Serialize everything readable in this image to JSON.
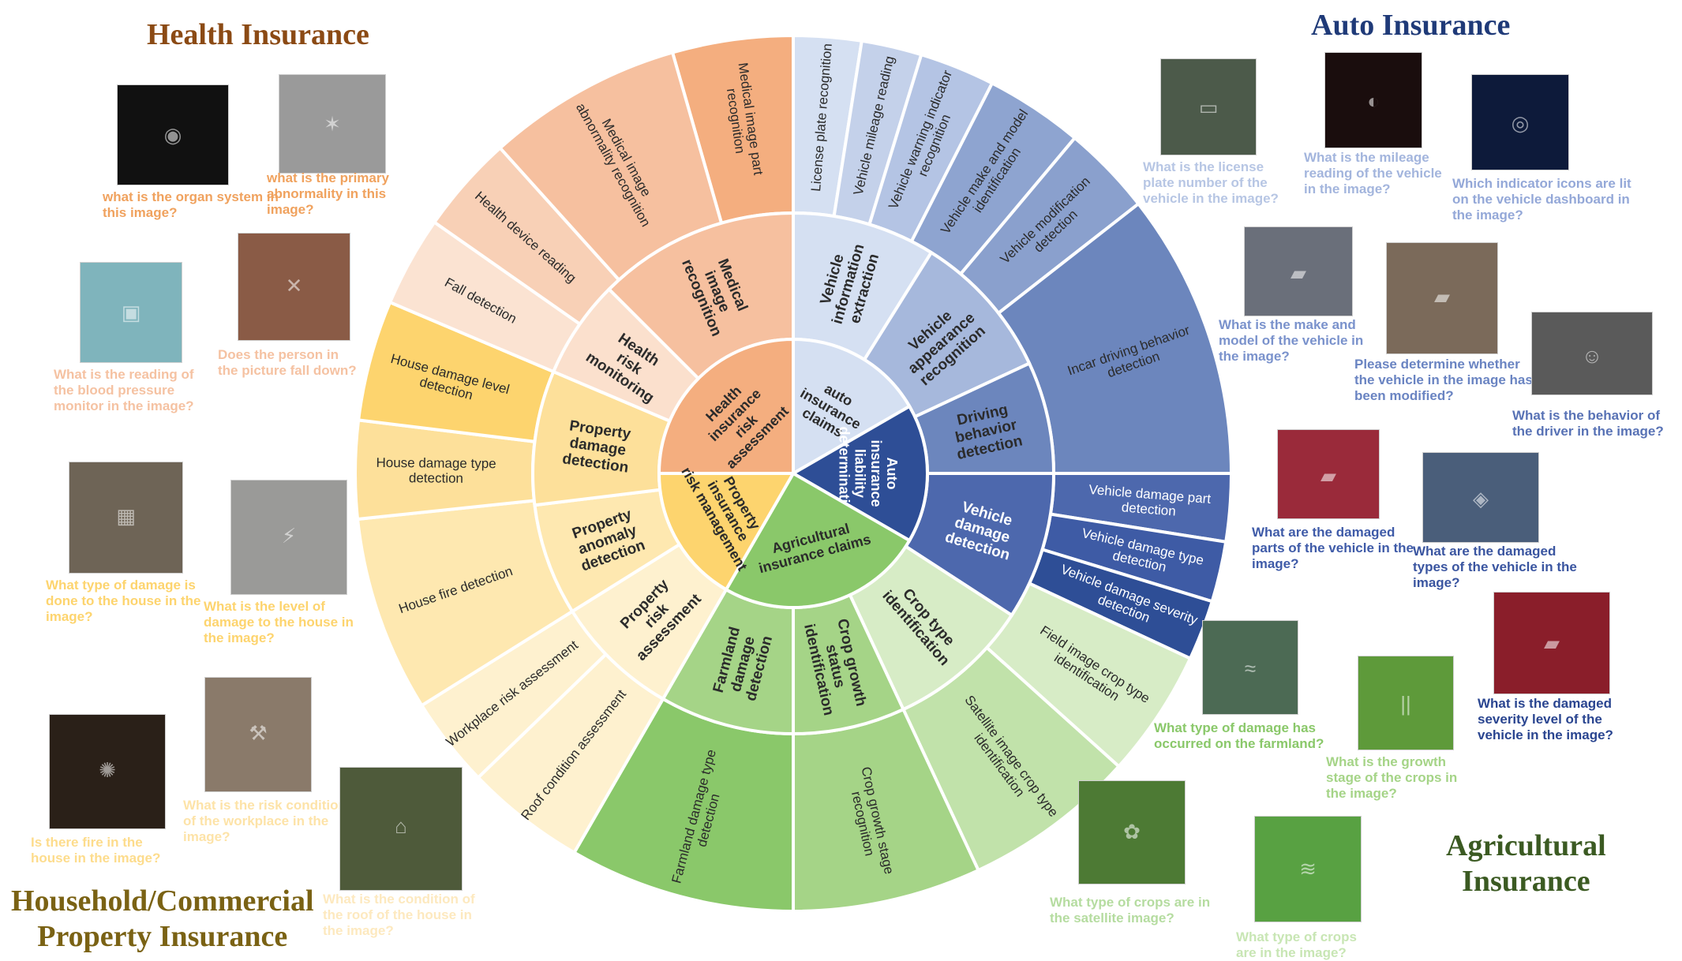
{
  "palette": {
    "health": [
      "#f4ae7f",
      "#f6c09f",
      "#f8d0b6",
      "#fbe3d2"
    ],
    "auto": [
      "#d5e0f2",
      "#a6b8dc",
      "#8aa0cd",
      "#6c86bd",
      "#4d68ad",
      "#2e4e96"
    ],
    "property": [
      "#fdd46e",
      "#fde09a",
      "#feeab6",
      "#fef1cf"
    ],
    "agri": [
      "#8ac86a",
      "#a5d487",
      "#c1e2aa",
      "#d7ecc6"
    ],
    "text_dark": "#2b2b2b",
    "text_light": "#ffffff"
  },
  "titles": {
    "health": "Health Insurance",
    "auto": "Auto Insurance",
    "property": "Household/Commercial\nProperty Insurance",
    "agri": "Agricultural\nInsurance"
  },
  "title_colors": {
    "health": "#8b4a14",
    "auto": "#1f3a78",
    "property": "#7a6214",
    "agri": "#3b5a22"
  },
  "wheel": {
    "inner": [
      {
        "label": "Health\ninsurance\nrisk\nassessment",
        "color": "#f4ae7f",
        "text": "#2b2b2b"
      },
      {
        "label": "auto\ninsurance\nclaims",
        "color": "#d5e0f2",
        "text": "#2b2b2b"
      },
      {
        "label": "Auto\ninsurance\nliability\ndetermination",
        "color": "#2e4e96",
        "text": "#ffffff"
      },
      {
        "label": "Agricultural\ninsurance claims",
        "color": "#8ac86a",
        "text": "#2b2b2b"
      },
      {
        "label": "Property\ninsurance\nrisk management",
        "color": "#fdd46e",
        "text": "#2b2b2b"
      }
    ],
    "middle": [
      {
        "label": "Medical\nimage\nrecognition",
        "color": "#f6c09f",
        "text": "#2b2b2b"
      },
      {
        "label": "Vehicle\ninformation\nextraction",
        "color": "#d5e0f2",
        "text": "#2b2b2b"
      },
      {
        "label": "Vehicle\nappearance\nrecognition",
        "color": "#a6b8dc",
        "text": "#2b2b2b"
      },
      {
        "label": "Driving\nbehavior\ndetection",
        "color": "#6c86bd",
        "text": "#2b2b2b"
      },
      {
        "label": "Vehicle\ndamage\ndetection",
        "color": "#4d68ad",
        "text": "#ffffff"
      },
      {
        "label": "Crop type\nidentification",
        "color": "#d7ecc6",
        "text": "#2b2b2b"
      },
      {
        "label": "Crop growth\nstatus\nidentification",
        "color": "#a5d487",
        "text": "#2b2b2b"
      },
      {
        "label": "Farmland\ndamage\ndetection",
        "color": "#a5d487",
        "text": "#2b2b2b"
      },
      {
        "label": "Property\nrisk\nassessment",
        "color": "#fef1cf",
        "text": "#2b2b2b"
      },
      {
        "label": "Property\nanomaly\ndetection",
        "color": "#fee8b0",
        "text": "#2b2b2b"
      },
      {
        "label": "Property\ndamage\ndetection",
        "color": "#fde09a",
        "text": "#2b2b2b"
      },
      {
        "label": "Health\nrisk\nmonitoring",
        "color": "#fbe0cd",
        "text": "#2b2b2b"
      }
    ],
    "outer": [
      {
        "label": "Medical image part\nrecognition",
        "color": "#f4ae7f",
        "text": "#2b2b2b"
      },
      {
        "label": "License plate recognition",
        "color": "#d5e0f2",
        "text": "#2b2b2b"
      },
      {
        "label": "Vehicle mileage reading",
        "color": "#c4d1ea",
        "text": "#2b2b2b"
      },
      {
        "label": "Vehicle warning indicator\nrecognition",
        "color": "#b4c4e4",
        "text": "#2b2b2b"
      },
      {
        "label": "Vehicle make and model\nidentification",
        "color": "#8ea4d0",
        "text": "#2b2b2b"
      },
      {
        "label": "Vehicle modification\ndetection",
        "color": "#8aa0cd",
        "text": "#2b2b2b"
      },
      {
        "label": "Incar driving behavior\ndetection",
        "color": "#6c86bd",
        "text": "#2b2b2b"
      },
      {
        "label": "Vehicle damage part\ndetection",
        "color": "#4d68ad",
        "text": "#ffffff"
      },
      {
        "label": "Vehicle damage type\ndetection",
        "color": "#3e5ba5",
        "text": "#ffffff"
      },
      {
        "label": "Vehicle damage severity\ndetection",
        "color": "#2e4e96",
        "text": "#ffffff"
      },
      {
        "label": "Field image crop type\nidentification",
        "color": "#d7ecc6",
        "text": "#2b2b2b"
      },
      {
        "label": "Satellite image crop type\nidentification",
        "color": "#c1e2aa",
        "text": "#2b2b2b"
      },
      {
        "label": "Crop growth stage\nrecognition",
        "color": "#a5d487",
        "text": "#2b2b2b"
      },
      {
        "label": "Farmland damage type\ndetection",
        "color": "#8ac86a",
        "text": "#2b2b2b"
      },
      {
        "label": "Roof condition assessment",
        "color": "#fef1cf",
        "text": "#2b2b2b"
      },
      {
        "label": "Workplace risk assessment",
        "color": "#fef1cf",
        "text": "#2b2b2b"
      },
      {
        "label": "House fire detection",
        "color": "#fee8b0",
        "text": "#2b2b2b"
      },
      {
        "label": "House damage type\ndetection",
        "color": "#fde09a",
        "text": "#2b2b2b"
      },
      {
        "label": "House damage level\ndetection",
        "color": "#fdd46e",
        "text": "#2b2b2b"
      },
      {
        "label": "Fall detection",
        "color": "#fbe3d2",
        "text": "#2b2b2b"
      },
      {
        "label": "Health device reading",
        "color": "#f8d0b6",
        "text": "#2b2b2b"
      },
      {
        "label": "Medical image\nabnormality recognition",
        "color": "#f6c09f",
        "text": "#2b2b2b"
      }
    ]
  },
  "examples": [
    {
      "id": "organ",
      "question": "what is the organ system in this image?",
      "color": "#f0a25e",
      "bg": "#111111",
      "icon": "ct-scan-image"
    },
    {
      "id": "abnormality",
      "question": "what is the primary abnormality in this image?",
      "color": "#f0a25e",
      "bg": "#9a9a9a",
      "icon": "x-ray-image"
    },
    {
      "id": "blood-pressure",
      "question": "What is the reading of the blood pressure monitor in the image?",
      "color": "#f5c2a2",
      "bg": "#7fb4bc",
      "icon": "blood-pressure-monitor-image"
    },
    {
      "id": "fall",
      "question": "Does the person in the picture fall down?",
      "color": "#f5c2a2",
      "bg": "#8a5b46",
      "icon": "fallen-person-image"
    },
    {
      "id": "license",
      "question": "What is the license plate number of the vehicle in the image?",
      "color": "#b7c6e4",
      "bg": "#4c5a4a",
      "icon": "car-rear-image"
    },
    {
      "id": "mileage",
      "question": "What is the mileage reading of the vehicle in the image?",
      "color": "#a3b5dd",
      "bg": "#1a0d0d",
      "icon": "dashboard-display-image"
    },
    {
      "id": "indicator",
      "question": "Which indicator icons are lit on the vehicle dashboard in the image?",
      "color": "#94a8d8",
      "bg": "#0d1a3a",
      "icon": "instrument-cluster-image"
    },
    {
      "id": "make-model",
      "question": "What is the make and model of the vehicle in the image?",
      "color": "#7a92cc",
      "bg": "#6a6f7a",
      "icon": "sedan-image"
    },
    {
      "id": "modified",
      "question": "Please determine whether the vehicle in the image has been modified?",
      "color": "#6a84c2",
      "bg": "#7b6a5a",
      "icon": "race-car-image"
    },
    {
      "id": "driver",
      "question": "What is the behavior of the driver in the image?",
      "color": "#5872b5",
      "bg": "#5a5a5a",
      "icon": "driver-image"
    },
    {
      "id": "damaged-parts",
      "question": "What are the damaged parts of the vehicle in the image?",
      "color": "#3f5ba8",
      "bg": "#9a2a3a",
      "icon": "damaged-red-car-image"
    },
    {
      "id": "damage-types",
      "question": "What are the damaged types of the vehicle in the image?",
      "color": "#3a55a0",
      "bg": "#4a5e7a",
      "icon": "broken-window-image"
    },
    {
      "id": "severity",
      "question": "What is the damaged severity level of the vehicle in the image?",
      "color": "#2a4590",
      "bg": "#8a1e2a",
      "icon": "crashed-car-image"
    },
    {
      "id": "farmland",
      "question": "What type of damage has occurred on the farmland?",
      "color": "#8ac86a",
      "bg": "#4c6a54",
      "icon": "satellite-farmland-image"
    },
    {
      "id": "growth",
      "question": "What is the growth stage of the crops in the image?",
      "color": "#a5d487",
      "bg": "#5e9a3a",
      "icon": "grass-field-image"
    },
    {
      "id": "satellite-crops",
      "question": "What type of crops are in the satellite image?",
      "color": "#b5dca0",
      "bg": "#4d7a34",
      "icon": "crop-closeup-image"
    },
    {
      "id": "crops",
      "question": "What type of crops are in the image?",
      "color": "#c8e6b4",
      "bg": "#58a142",
      "icon": "rice-field-image"
    },
    {
      "id": "house-damage-type",
      "question": "What type of damage is done to the house in the image?",
      "color": "#fdd46e",
      "bg": "#6e6456",
      "icon": "damaged-floor-image"
    },
    {
      "id": "house-damage-level",
      "question": "What is the level of damage to the house in the image?",
      "color": "#fdd46e",
      "bg": "#9a9a98",
      "icon": "cracked-wall-image"
    },
    {
      "id": "fire",
      "question": "Is there fire in the house in the image?",
      "color": "#fddc8c",
      "bg": "#2a2018",
      "icon": "cctv-fire-image"
    },
    {
      "id": "workplace",
      "question": "What is the risk condition of the workplace in the image?",
      "color": "#fde3a8",
      "bg": "#8a7a6a",
      "icon": "construction-workers-image"
    },
    {
      "id": "roof",
      "question": "What is the condition of the roof of the house in the image?",
      "color": "#fde9bf",
      "bg": "#4e5a3a",
      "icon": "aerial-roof-image"
    }
  ]
}
